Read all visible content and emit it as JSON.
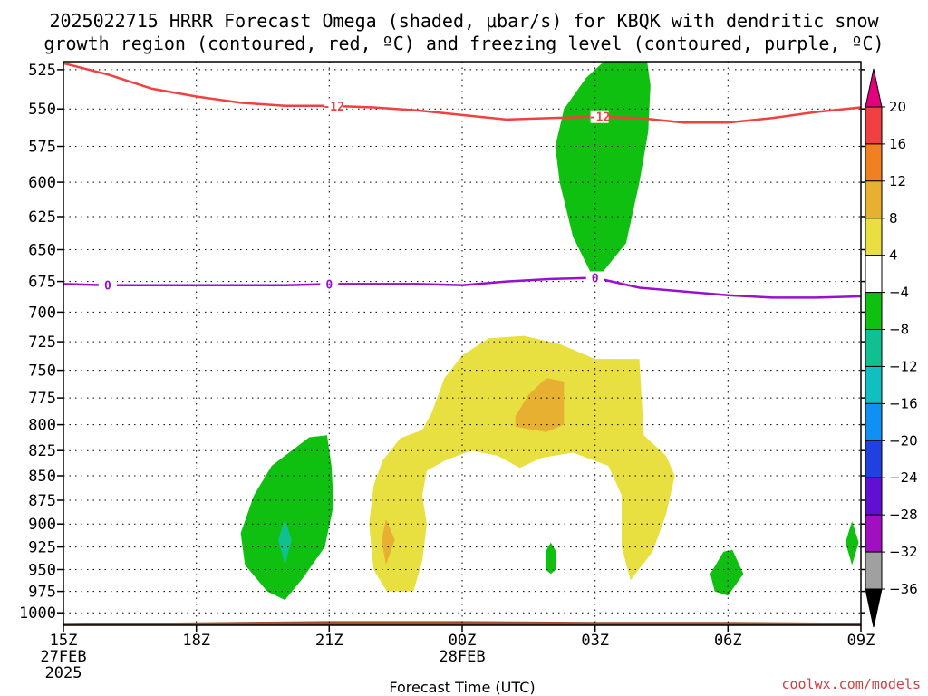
{
  "chart_data": {
    "type": "time-height cross section",
    "title_line1": "2025022715 HRRR Forecast Omega (shaded, μbar/s) for KBQK with dendritic snow",
    "title_line2": "growth region (contoured, red, ºC) and freezing level (contoured, purple, ºC)",
    "xlabel": "Forecast Time (UTC)",
    "credit": "coolwx.com/models",
    "x_hours_range": [
      0,
      18
    ],
    "y_pressure_range": [
      1015,
      520
    ],
    "x_ticks": [
      {
        "h": 0,
        "l1": "15Z",
        "l2": "27FEB",
        "l3": "2025"
      },
      {
        "h": 3,
        "l1": "18Z",
        "l2": "",
        "l3": ""
      },
      {
        "h": 6,
        "l1": "21Z",
        "l2": "",
        "l3": ""
      },
      {
        "h": 9,
        "l1": "00Z",
        "l2": "28FEB",
        "l3": ""
      },
      {
        "h": 12,
        "l1": "03Z",
        "l2": "",
        "l3": ""
      },
      {
        "h": 15,
        "l1": "06Z",
        "l2": "",
        "l3": ""
      },
      {
        "h": 18,
        "l1": "09Z",
        "l2": "",
        "l3": ""
      }
    ],
    "y_ticks": [
      525,
      550,
      575,
      600,
      625,
      650,
      675,
      700,
      725,
      750,
      775,
      800,
      825,
      850,
      875,
      900,
      925,
      950,
      975,
      1000
    ],
    "colorbar": {
      "levels": [
        "20",
        "16",
        "12",
        "8",
        "4",
        "−4",
        "−8",
        "−12",
        "−16",
        "−20",
        "−24",
        "−28",
        "−32",
        "−36"
      ],
      "colors": [
        "#e4007c",
        "#f04040",
        "#f08020",
        "#e8b030",
        "#e8e040",
        "#ffffff",
        "#10c010",
        "#10c090",
        "#10c0c0",
        "#1090f0",
        "#2040e0",
        "#6010d0",
        "#a010c0",
        "#a0a0a0",
        "#000000"
      ]
    },
    "dgz_line": {
      "color": "#f04040",
      "label": "-12",
      "label_hours": [
        6.1,
        12.1
      ],
      "points": [
        [
          0,
          521
        ],
        [
          1,
          528
        ],
        [
          2,
          537
        ],
        [
          3,
          542
        ],
        [
          4,
          546
        ],
        [
          5,
          548
        ],
        [
          6,
          548
        ],
        [
          7,
          549
        ],
        [
          8,
          551
        ],
        [
          9,
          554
        ],
        [
          10,
          557
        ],
        [
          11,
          556
        ],
        [
          12,
          555
        ],
        [
          13,
          556
        ],
        [
          14,
          559
        ],
        [
          15,
          559
        ],
        [
          16,
          556
        ],
        [
          17,
          552
        ],
        [
          18,
          549
        ]
      ]
    },
    "freezing_line": {
      "color": "#9910d0",
      "label": "0",
      "label_hours": [
        1.0,
        6.0,
        12.0
      ],
      "points": [
        [
          0,
          677
        ],
        [
          1,
          678
        ],
        [
          2,
          678
        ],
        [
          3,
          678
        ],
        [
          4,
          678
        ],
        [
          5,
          678
        ],
        [
          6,
          677
        ],
        [
          7,
          677
        ],
        [
          8,
          677
        ],
        [
          9,
          678
        ],
        [
          10,
          675
        ],
        [
          11,
          673
        ],
        [
          12,
          672
        ],
        [
          13,
          680
        ],
        [
          14,
          683
        ],
        [
          15,
          686
        ],
        [
          16,
          688
        ],
        [
          17,
          688
        ],
        [
          18,
          687
        ]
      ]
    },
    "omega_regions": [
      {
        "value_class": "-4 to -8",
        "color": "#10c010",
        "points": [
          [
            12.4,
            515
          ],
          [
            13.15,
            515
          ],
          [
            13.25,
            535
          ],
          [
            13.2,
            565
          ],
          [
            13.0,
            600
          ],
          [
            12.7,
            645
          ],
          [
            12.0,
            675
          ],
          [
            11.5,
            640
          ],
          [
            11.2,
            600
          ],
          [
            11.1,
            575
          ],
          [
            11.3,
            550
          ],
          [
            11.8,
            530
          ],
          [
            12.4,
            515
          ]
        ]
      },
      {
        "value_class": "4 to 8",
        "color": "#e8e040",
        "points": [
          [
            8.1,
            805
          ],
          [
            8.3,
            790
          ],
          [
            8.6,
            757
          ],
          [
            9.0,
            737
          ],
          [
            9.6,
            722
          ],
          [
            10.4,
            720
          ],
          [
            11.2,
            727
          ],
          [
            12.0,
            740
          ],
          [
            13.0,
            740
          ],
          [
            13.1,
            810
          ],
          [
            13.6,
            830
          ],
          [
            13.8,
            850
          ],
          [
            13.6,
            890
          ],
          [
            13.3,
            930
          ],
          [
            12.8,
            962
          ],
          [
            12.6,
            925
          ],
          [
            12.6,
            870
          ],
          [
            12.3,
            840
          ],
          [
            11.5,
            827
          ],
          [
            10.8,
            832
          ],
          [
            10.3,
            842
          ],
          [
            9.8,
            830
          ],
          [
            9.2,
            825
          ],
          [
            8.6,
            835
          ],
          [
            8.2,
            845
          ],
          [
            8.1,
            870
          ],
          [
            8.2,
            900
          ],
          [
            8.1,
            940
          ],
          [
            7.9,
            975
          ],
          [
            7.3,
            975
          ],
          [
            7.0,
            950
          ],
          [
            6.9,
            900
          ],
          [
            7.0,
            860
          ],
          [
            7.2,
            835
          ],
          [
            7.6,
            813
          ],
          [
            8.1,
            805
          ]
        ]
      },
      {
        "value_class": "8 to 12",
        "color": "#e8b030",
        "points": [
          [
            10.2,
            792
          ],
          [
            10.5,
            772
          ],
          [
            10.9,
            757
          ],
          [
            11.3,
            760
          ],
          [
            11.3,
            800
          ],
          [
            10.9,
            807
          ],
          [
            10.2,
            802
          ],
          [
            10.2,
            792
          ]
        ]
      },
      {
        "value_class": "8 to 12",
        "color": "#e8b030",
        "points": [
          [
            7.28,
            895
          ],
          [
            7.48,
            917
          ],
          [
            7.28,
            945
          ],
          [
            7.18,
            917
          ],
          [
            7.28,
            895
          ]
        ]
      },
      {
        "value_class": "-4 to -8",
        "color": "#10c010",
        "points": [
          [
            5.55,
            812
          ],
          [
            5.95,
            810
          ],
          [
            6.05,
            840
          ],
          [
            6.1,
            880
          ],
          [
            5.9,
            925
          ],
          [
            5.4,
            960
          ],
          [
            5.0,
            985
          ],
          [
            4.6,
            975
          ],
          [
            4.1,
            945
          ],
          [
            4.0,
            910
          ],
          [
            4.3,
            870
          ],
          [
            4.7,
            840
          ],
          [
            5.55,
            812
          ]
        ]
      },
      {
        "value_class": "-8 to -12",
        "color": "#10c090",
        "points": [
          [
            5.0,
            895
          ],
          [
            5.15,
            917
          ],
          [
            5.0,
            945
          ],
          [
            4.85,
            917
          ],
          [
            5.0,
            895
          ]
        ]
      },
      {
        "value_class": "-8 to -12",
        "color": "#10c010",
        "points": [
          [
            11.0,
            920
          ],
          [
            11.12,
            930
          ],
          [
            11.12,
            950
          ],
          [
            11.0,
            955
          ],
          [
            10.88,
            950
          ],
          [
            10.88,
            930
          ],
          [
            11.0,
            920
          ]
        ]
      },
      {
        "value_class": "-4 to -8",
        "color": "#10c010",
        "points": [
          [
            14.9,
            930
          ],
          [
            15.1,
            928
          ],
          [
            15.35,
            955
          ],
          [
            15.0,
            980
          ],
          [
            14.7,
            975
          ],
          [
            14.6,
            955
          ],
          [
            14.9,
            930
          ]
        ]
      },
      {
        "value_class": "-4 to -8",
        "color": "#10c010",
        "points": [
          [
            17.8,
            897
          ],
          [
            17.95,
            920
          ],
          [
            17.8,
            945
          ],
          [
            17.65,
            920
          ],
          [
            17.8,
            897
          ]
        ]
      }
    ],
    "terrain": {
      "color": "#a0522d",
      "points": [
        [
          0,
          1013
        ],
        [
          2,
          1012
        ],
        [
          4,
          1011
        ],
        [
          6,
          1010
        ],
        [
          9,
          1010
        ],
        [
          12,
          1011
        ],
        [
          15,
          1011
        ],
        [
          18,
          1012
        ]
      ]
    }
  }
}
